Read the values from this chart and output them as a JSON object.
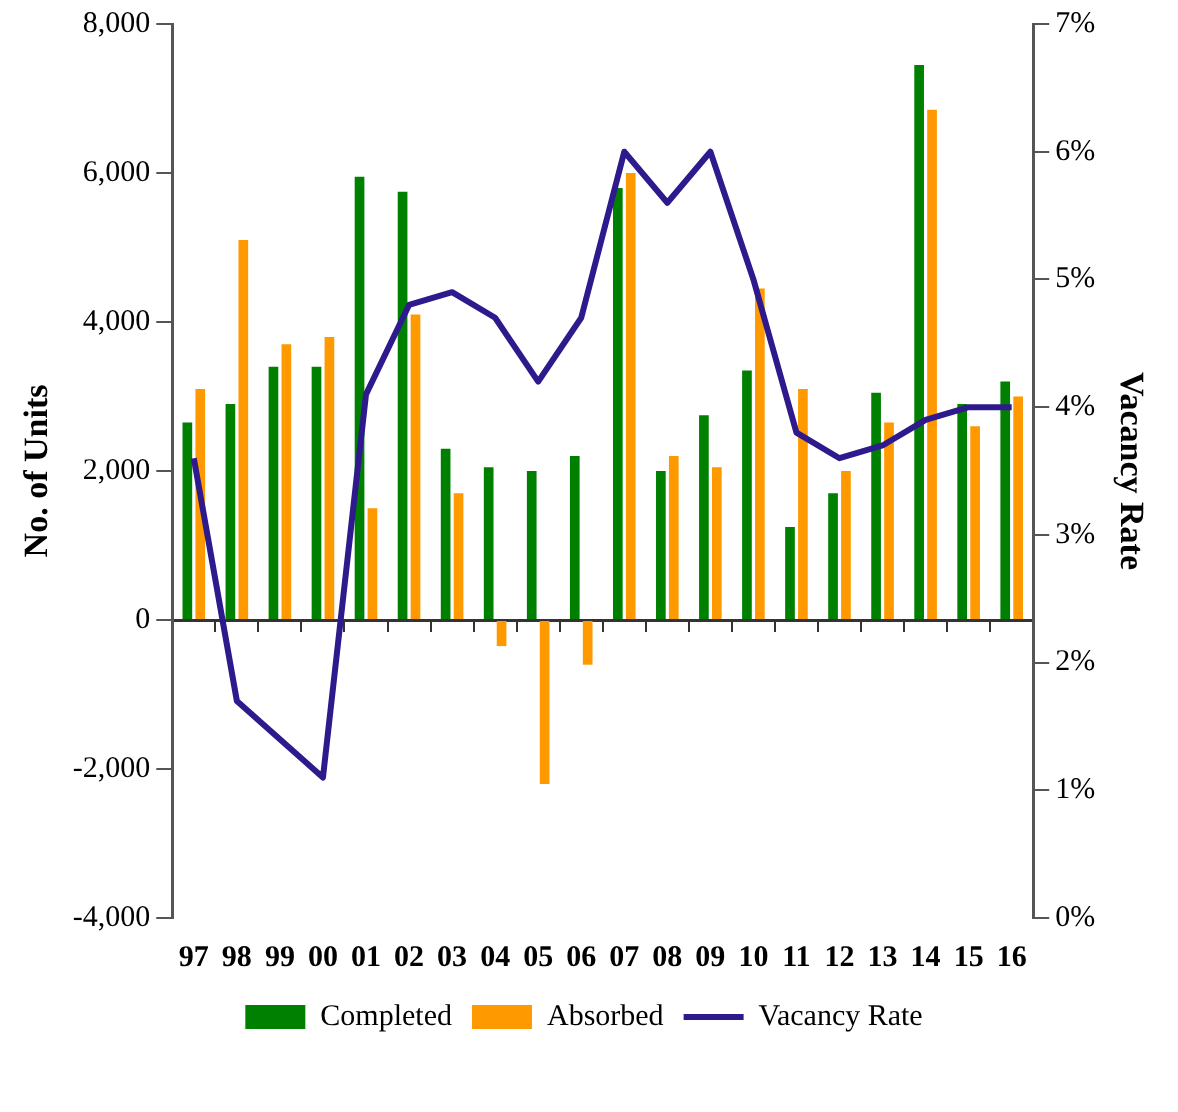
{
  "chart_data": {
    "type": "bar",
    "ylabel": "No. of Units",
    "y2label": "Vacancy Rate",
    "categories": [
      "97",
      "98",
      "99",
      "00",
      "01",
      "02",
      "03",
      "04",
      "05",
      "06",
      "07",
      "08",
      "09",
      "10",
      "11",
      "12",
      "13",
      "14",
      "15",
      "16"
    ],
    "series": [
      {
        "name": "Completed",
        "color": "#008000",
        "values": [
          2650,
          2900,
          3400,
          3400,
          5950,
          5750,
          2300,
          2050,
          2000,
          2200,
          5800,
          2000,
          2750,
          3350,
          1250,
          1700,
          3050,
          7450,
          2900,
          3200
        ]
      },
      {
        "name": "Absorbed",
        "color": "#ff9900",
        "values": [
          3100,
          5100,
          3700,
          3800,
          1500,
          4100,
          1700,
          -350,
          -2200,
          -600,
          6000,
          2200,
          2050,
          4450,
          3100,
          2000,
          2650,
          6850,
          2600,
          3000
        ]
      },
      {
        "name": "Vacancy Rate",
        "type": "line",
        "axis": "y2",
        "color": "#2e1a8c",
        "values": [
          3.6,
          1.7,
          1.4,
          1.1,
          4.1,
          4.8,
          4.9,
          4.7,
          4.2,
          4.7,
          6.0,
          5.6,
          6.0,
          5.0,
          3.8,
          3.6,
          3.7,
          3.9,
          4.0,
          4.0
        ]
      }
    ],
    "ylim": [
      -4000,
      8000
    ],
    "yticks": [
      {
        "value": -4000,
        "label": "-4,000"
      },
      {
        "value": -2000,
        "label": "-2,000"
      },
      0,
      {
        "value": 2000,
        "label": "2,000"
      },
      {
        "value": 4000,
        "label": "4,000"
      },
      {
        "value": 6000,
        "label": "6,000"
      },
      {
        "value": 8000,
        "label": "8,000"
      }
    ],
    "y2lim": [
      0,
      7
    ],
    "y2ticks": [
      {
        "value": 0,
        "label": "0%"
      },
      {
        "value": 1,
        "label": "1%"
      },
      {
        "value": 2,
        "label": "2%"
      },
      {
        "value": 3,
        "label": "3%"
      },
      {
        "value": 4,
        "label": "4%"
      },
      {
        "value": 5,
        "label": "5%"
      },
      {
        "value": 6,
        "label": "6%"
      },
      {
        "value": 7,
        "label": "7%"
      }
    ],
    "legend": "bottom",
    "marker": "none"
  }
}
